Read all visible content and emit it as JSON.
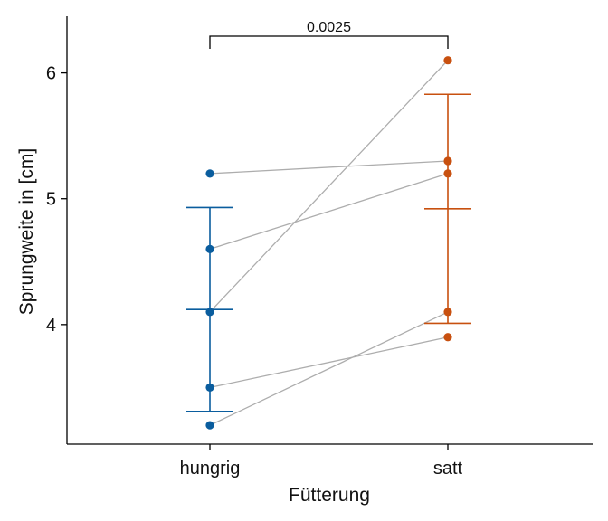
{
  "chart_data": {
    "type": "scatter",
    "title": "",
    "xlabel": "Fütterung",
    "ylabel": "Sprungweite in [cm]",
    "categories": [
      "hungrig",
      "satt"
    ],
    "ylim": [
      3.05,
      6.45
    ],
    "yticks": [
      4,
      5,
      6
    ],
    "grid": false,
    "series": [
      {
        "category": "hungrig",
        "color": "#0a5d9e",
        "values": [
          5.2,
          4.6,
          4.1,
          3.5,
          3.2
        ],
        "mean": 4.12,
        "error_low": 3.31,
        "error_high": 4.93
      },
      {
        "category": "satt",
        "color": "#c8500f",
        "values": [
          6.1,
          5.3,
          5.2,
          4.1,
          3.9
        ],
        "mean": 4.92,
        "error_low": 4.01,
        "error_high": 5.83
      }
    ],
    "pairs": [
      [
        5.2,
        5.3
      ],
      [
        4.6,
        5.2
      ],
      [
        4.1,
        6.1
      ],
      [
        3.5,
        3.9
      ],
      [
        3.2,
        4.1
      ]
    ],
    "pair_line_color": "#adadad",
    "significance": {
      "label": "0.0025",
      "from": "hungrig",
      "to": "satt"
    }
  }
}
